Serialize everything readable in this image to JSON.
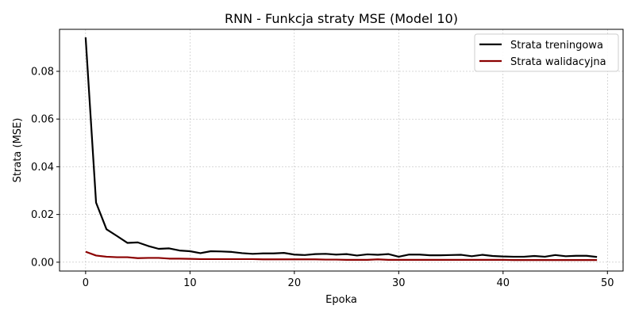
{
  "chart_data": {
    "type": "line",
    "title": "RNN - Funkcja straty MSE (Model 10)",
    "xlabel": "Epoka",
    "ylabel": "Strata (MSE)",
    "xlim": [
      -2.5,
      51.5
    ],
    "ylim": [
      -0.0037,
      0.0976
    ],
    "xticks": [
      0,
      10,
      20,
      30,
      40,
      50
    ],
    "yticks": [
      "0.00",
      "0.02",
      "0.04",
      "0.06",
      "0.08"
    ],
    "grid": true,
    "legend_position": "top-right",
    "x": [
      0,
      1,
      2,
      3,
      4,
      5,
      6,
      7,
      8,
      9,
      10,
      11,
      12,
      13,
      14,
      15,
      16,
      17,
      18,
      19,
      20,
      21,
      22,
      23,
      24,
      25,
      26,
      27,
      28,
      29,
      30,
      31,
      32,
      33,
      34,
      35,
      36,
      37,
      38,
      39,
      40,
      41,
      42,
      43,
      44,
      45,
      46,
      47,
      48,
      49
    ],
    "series": [
      {
        "name": "Strata treningowa",
        "color": "#000000",
        "values": [
          0.0942,
          0.025,
          0.0138,
          0.011,
          0.0081,
          0.0083,
          0.0068,
          0.0056,
          0.0058,
          0.0049,
          0.0046,
          0.0038,
          0.0046,
          0.0045,
          0.0043,
          0.0038,
          0.0035,
          0.0037,
          0.0037,
          0.0039,
          0.0032,
          0.003,
          0.0034,
          0.0035,
          0.0032,
          0.0034,
          0.0028,
          0.0033,
          0.0031,
          0.0034,
          0.0023,
          0.0032,
          0.0032,
          0.0029,
          0.0029,
          0.003,
          0.0031,
          0.0025,
          0.0031,
          0.0026,
          0.0024,
          0.0023,
          0.0023,
          0.0026,
          0.0023,
          0.003,
          0.0025,
          0.0027,
          0.0027,
          0.0022
        ]
      },
      {
        "name": "Strata walidacyjna",
        "color": "#8b0000",
        "values": [
          0.0044,
          0.0028,
          0.0023,
          0.0021,
          0.0021,
          0.0017,
          0.0018,
          0.0018,
          0.0015,
          0.0015,
          0.0014,
          0.0013,
          0.0013,
          0.0013,
          0.0013,
          0.0013,
          0.0013,
          0.0012,
          0.0012,
          0.0012,
          0.0012,
          0.0012,
          0.0012,
          0.0011,
          0.0011,
          0.001,
          0.001,
          0.001,
          0.0012,
          0.001,
          0.001,
          0.001,
          0.001,
          0.001,
          0.001,
          0.001,
          0.001,
          0.001,
          0.001,
          0.001,
          0.001,
          0.0009,
          0.0009,
          0.0009,
          0.0009,
          0.0009,
          0.0009,
          0.0009,
          0.0009,
          0.0009
        ]
      }
    ]
  }
}
